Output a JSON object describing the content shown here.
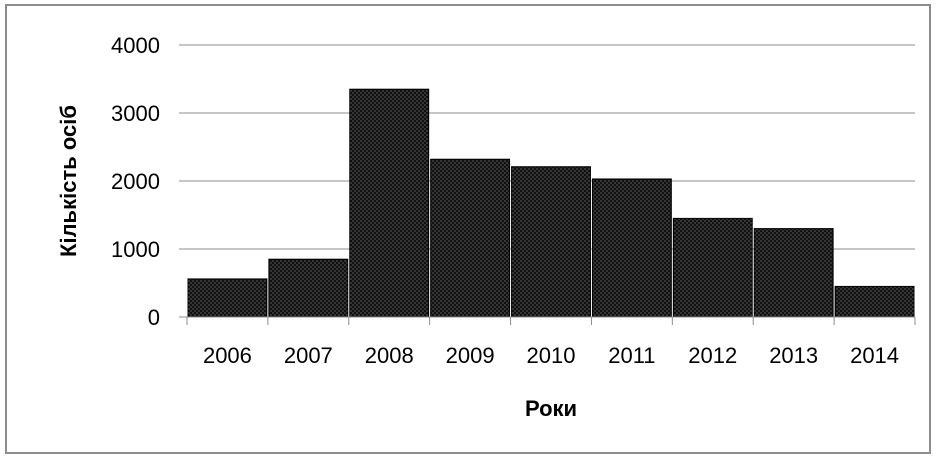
{
  "chart_data": {
    "type": "bar",
    "categories": [
      "2006",
      "2007",
      "2008",
      "2009",
      "2010",
      "2011",
      "2012",
      "2013",
      "2014"
    ],
    "values": [
      560,
      850,
      3350,
      2320,
      2210,
      2030,
      1450,
      1300,
      450
    ],
    "xlabel": "Роки",
    "ylabel": "Кількість осіб",
    "ylim": [
      0,
      4000
    ],
    "yticks": [
      "0",
      "1000",
      "2000",
      "3000",
      "4000"
    ],
    "grid": true,
    "bar_color": "#111111",
    "bar_pattern": "dotted"
  }
}
